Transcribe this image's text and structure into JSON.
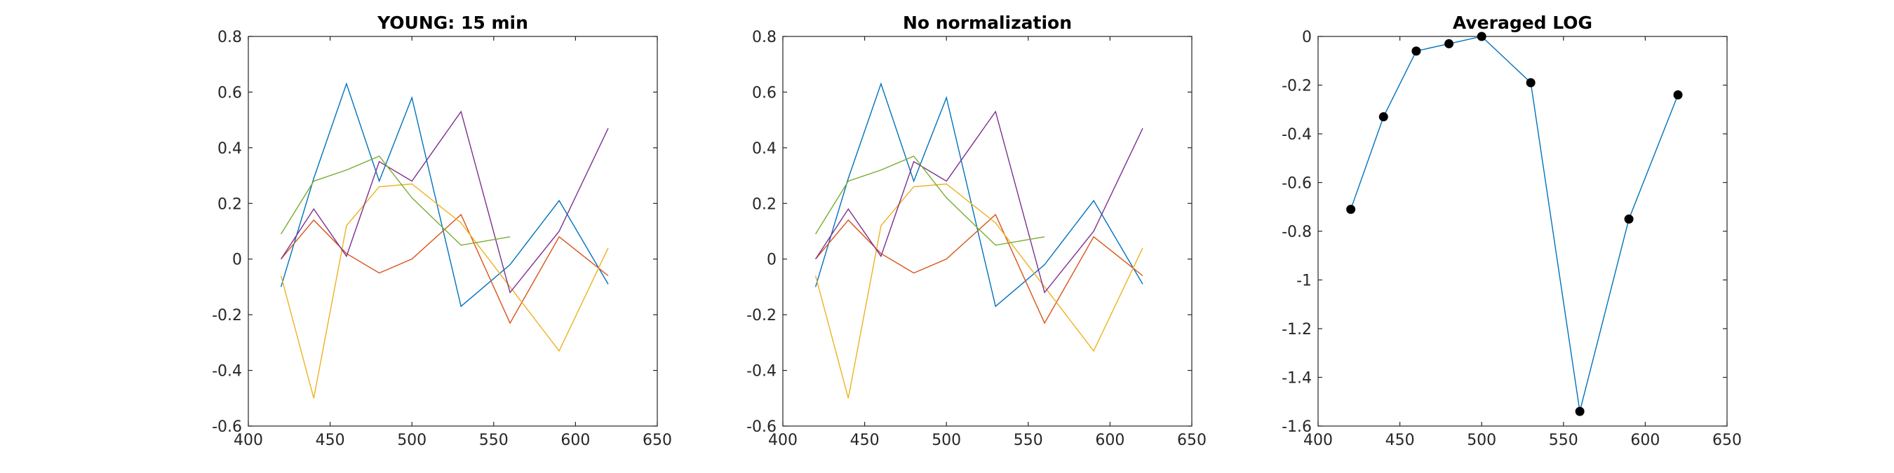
{
  "chart_data": [
    {
      "type": "line",
      "title": "YOUNG: 15 min",
      "xlabel": "",
      "ylabel": "",
      "xlim": [
        400,
        650
      ],
      "ylim": [
        -0.6,
        0.8
      ],
      "xticks": [
        400,
        450,
        500,
        550,
        600,
        650
      ],
      "yticks": [
        -0.6,
        -0.4,
        -0.2,
        0,
        0.2,
        0.4,
        0.6,
        0.8
      ],
      "xtick_labels": [
        "400",
        "450",
        "500",
        "550",
        "600",
        "650"
      ],
      "ytick_labels": [
        "-0.6",
        "-0.4",
        "-0.2",
        "0",
        "0.2",
        "0.4",
        "0.6",
        "0.8"
      ],
      "grid": false,
      "series": [
        {
          "color": "#0072BD",
          "x": [
            420,
            440,
            460,
            480,
            500,
            530,
            560,
            590,
            620
          ],
          "y": [
            -0.1,
            0.29,
            0.63,
            0.28,
            0.58,
            -0.17,
            -0.02,
            0.21,
            -0.09
          ]
        },
        {
          "color": "#D95319",
          "x": [
            420,
            440,
            460,
            480,
            500,
            530,
            560,
            590,
            620
          ],
          "y": [
            0.0,
            0.14,
            0.02,
            -0.05,
            0.0,
            0.16,
            -0.23,
            0.08,
            -0.06
          ]
        },
        {
          "color": "#EDB120",
          "x": [
            420,
            440,
            460,
            480,
            500,
            530,
            560,
            590,
            620
          ],
          "y": [
            -0.06,
            -0.5,
            0.12,
            0.26,
            0.27,
            0.13,
            -0.1,
            -0.33,
            0.04
          ]
        },
        {
          "color": "#7E2F8E",
          "x": [
            420,
            440,
            460,
            480,
            500,
            530,
            560,
            590,
            620
          ],
          "y": [
            0.0,
            0.18,
            0.01,
            0.35,
            0.28,
            0.53,
            -0.12,
            0.1,
            0.47
          ]
        },
        {
          "color": "#77AC30",
          "x": [
            420,
            440,
            460,
            480,
            500,
            530,
            560
          ],
          "y": [
            0.09,
            0.28,
            0.32,
            0.37,
            0.22,
            0.05,
            0.08
          ]
        }
      ]
    },
    {
      "type": "line",
      "title": "No normalization",
      "xlabel": "",
      "ylabel": "",
      "xlim": [
        400,
        650
      ],
      "ylim": [
        -0.6,
        0.8
      ],
      "xticks": [
        400,
        450,
        500,
        550,
        600,
        650
      ],
      "yticks": [
        -0.6,
        -0.4,
        -0.2,
        0,
        0.2,
        0.4,
        0.6,
        0.8
      ],
      "xtick_labels": [
        "400",
        "450",
        "500",
        "550",
        "600",
        "650"
      ],
      "ytick_labels": [
        "-0.6",
        "-0.4",
        "-0.2",
        "0",
        "0.2",
        "0.4",
        "0.6",
        "0.8"
      ],
      "grid": false,
      "series": [
        {
          "color": "#0072BD",
          "x": [
            420,
            440,
            460,
            480,
            500,
            530,
            560,
            590,
            620
          ],
          "y": [
            -0.1,
            0.29,
            0.63,
            0.28,
            0.58,
            -0.17,
            -0.02,
            0.21,
            -0.09
          ]
        },
        {
          "color": "#D95319",
          "x": [
            420,
            440,
            460,
            480,
            500,
            530,
            560,
            590,
            620
          ],
          "y": [
            0.0,
            0.14,
            0.02,
            -0.05,
            0.0,
            0.16,
            -0.23,
            0.08,
            -0.06
          ]
        },
        {
          "color": "#EDB120",
          "x": [
            420,
            440,
            460,
            480,
            500,
            530,
            560,
            590,
            620
          ],
          "y": [
            -0.06,
            -0.5,
            0.12,
            0.26,
            0.27,
            0.13,
            -0.1,
            -0.33,
            0.04
          ]
        },
        {
          "color": "#7E2F8E",
          "x": [
            420,
            440,
            460,
            480,
            500,
            530,
            560,
            590,
            620
          ],
          "y": [
            0.0,
            0.18,
            0.01,
            0.35,
            0.28,
            0.53,
            -0.12,
            0.1,
            0.47
          ]
        },
        {
          "color": "#77AC30",
          "x": [
            420,
            440,
            460,
            480,
            500,
            530,
            560
          ],
          "y": [
            0.09,
            0.28,
            0.32,
            0.37,
            0.22,
            0.05,
            0.08
          ]
        }
      ]
    },
    {
      "type": "line",
      "title": "Averaged LOG",
      "xlabel": "",
      "ylabel": "",
      "xlim": [
        400,
        650
      ],
      "ylim": [
        -1.6,
        0
      ],
      "xticks": [
        400,
        450,
        500,
        550,
        600,
        650
      ],
      "yticks": [
        -1.6,
        -1.4,
        -1.2,
        -1,
        -0.8,
        -0.6,
        -0.4,
        -0.2,
        0
      ],
      "xtick_labels": [
        "400",
        "450",
        "500",
        "550",
        "600",
        "650"
      ],
      "ytick_labels": [
        "-1.6",
        "-1.4",
        "-1.2",
        "-1",
        "-0.8",
        "-0.6",
        "-0.4",
        "-0.2",
        "0"
      ],
      "grid": false,
      "markers": true,
      "series": [
        {
          "color": "#0072BD",
          "x": [
            420,
            440,
            460,
            480,
            500,
            530,
            560,
            590,
            620
          ],
          "y": [
            -0.71,
            -0.33,
            -0.06,
            -0.03,
            0.0,
            -0.19,
            -1.54,
            -0.75,
            -0.24
          ]
        }
      ]
    }
  ]
}
